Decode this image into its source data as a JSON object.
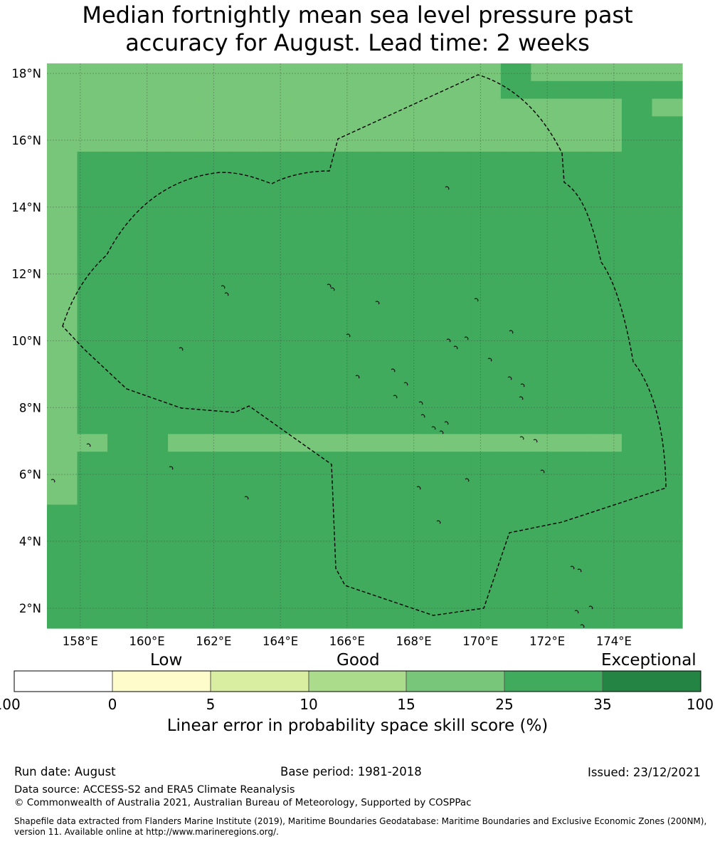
{
  "title_line1": "Median fortnightly mean sea level pressure past",
  "title_line2": "accuracy for August. Lead time: 2 weeks",
  "map": {
    "lon_labels": [
      "158°E",
      "160°E",
      "162°E",
      "164°E",
      "166°E",
      "168°E",
      "170°E",
      "172°E",
      "174°E"
    ],
    "lat_labels": [
      "18°N",
      "16°N",
      "14°N",
      "12°N",
      "10°N",
      "8°N",
      "6°N",
      "4°N",
      "2°N"
    ],
    "extent": {
      "lon_min": 157,
      "lon_max": 176.05,
      "lat_min": 1.4,
      "lat_max": 18.3
    },
    "cell_degrees": 0.833,
    "category_colors": [
      "#ffffff",
      "#fefccb",
      "#d9eea1",
      "#abdc8c",
      "#78c679",
      "#41ab5d",
      "#238443"
    ],
    "grid_rows": [
      "444444444444444544444",
      "444444444444444555555",
      "444444444444444444454",
      "444444444444444444455",
      "444444444444444444455",
      "455555555555555555555",
      "455555555555555555555",
      "455555555555555555555",
      "455555555555555555555",
      "455555555555555555555",
      "455555555555555555555",
      "455555555555555555555",
      "455555555555555555555",
      "455555555555555555555",
      "455555555555555555555",
      "455555555555555555555",
      "455555555555555555555",
      "455555555555555555555",
      "455555555555555555555",
      "455555555555555555555",
      "455555555555555555555",
      "445544444444444444455",
      "455555555555555555555",
      "455555555555555555555",
      "455555555555555555555",
      "555555555555555555555",
      "555555555555555555555",
      "555555555555555555555",
      "555555555555555555555",
      "555555555555555555555",
      "555555555555555555555",
      "555555555555555555555"
    ]
  },
  "colorbar": {
    "category_words": [
      "Low",
      "Good",
      "Exceptional"
    ],
    "ticks": [
      "-100",
      "0",
      "5",
      "10",
      "15",
      "25",
      "35",
      "100"
    ],
    "colors": [
      "#ffffff",
      "#fefccb",
      "#d9eea1",
      "#abdc8c",
      "#78c679",
      "#41ab5d",
      "#238443"
    ],
    "label": "Linear error in probability space skill score (%)"
  },
  "footer": {
    "run_date": "Run date: August",
    "base_period": "Base period: 1981-2018",
    "issued": "Issued: 23/12/2021",
    "data_source": "Data source: ACCESS-S2 and ERA5 Climate Reanalysis",
    "copyright": "© Commonwealth of Australia 2021, Australian Bureau of Meteorology, Supported by COSPPac",
    "shapefile": "Shapefile data extracted from Flanders Marine Institute (2019), Maritime Boundaries Geodatabase: Maritime Boundaries and Exclusive Economic Zones (200NM), version 11. Available online at http://www.marineregions.org/."
  }
}
